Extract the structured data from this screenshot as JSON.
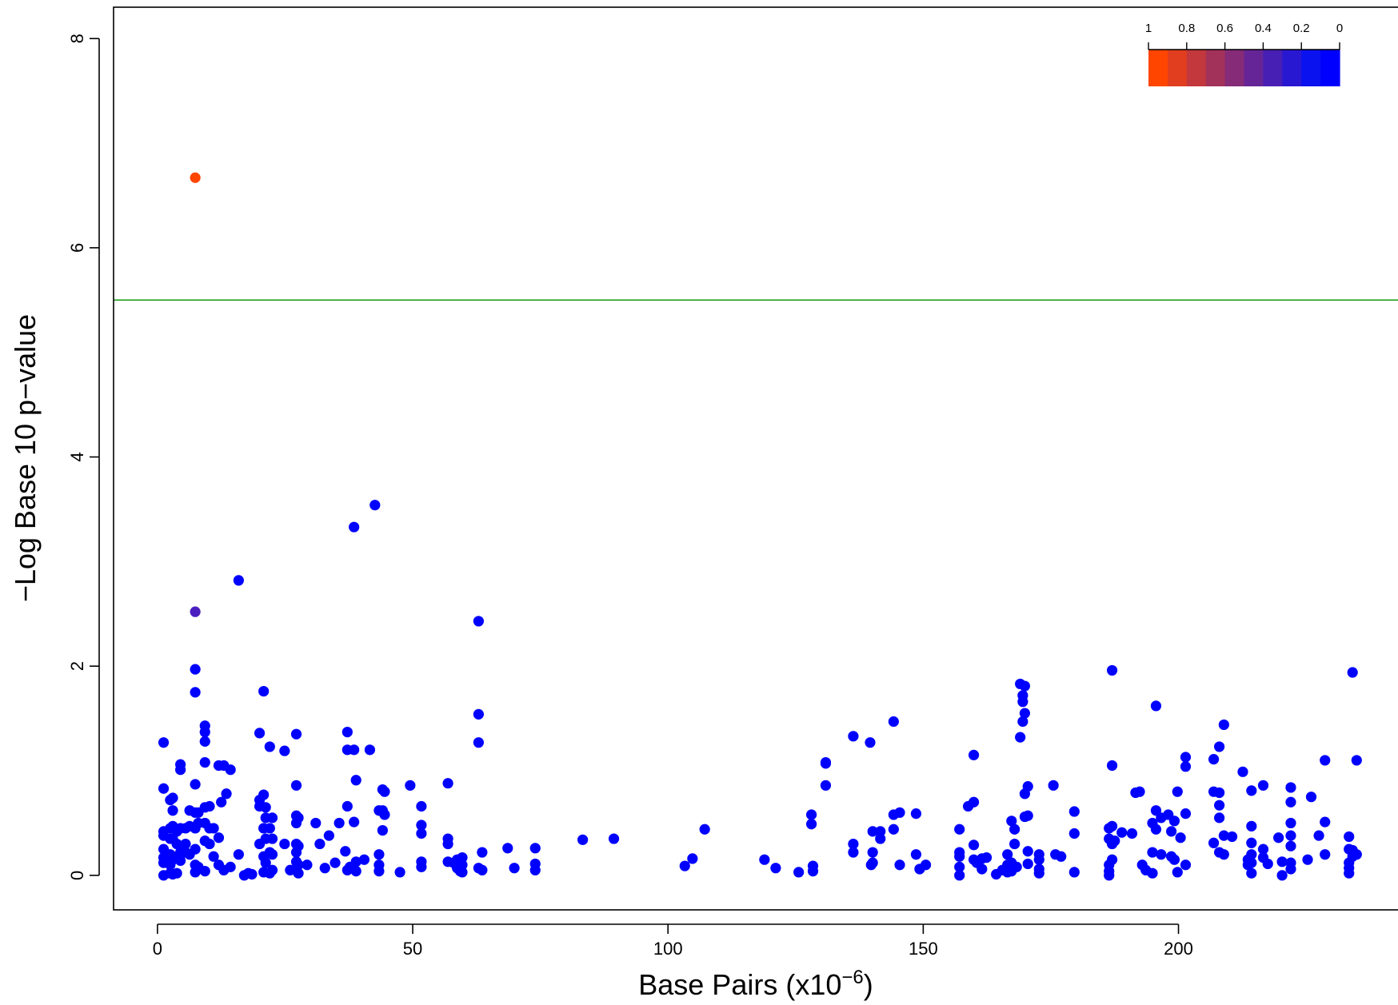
{
  "chart_data": {
    "type": "scatter",
    "xlabel": "Base Pairs (x10",
    "xlabel_sup": "−6",
    "xlabel_close": ")",
    "ylabel": "−Log Base 10 p−value",
    "xlim": [
      -8.6,
      243
    ],
    "ylim": [
      -0.33,
      8.3
    ],
    "xticks": [
      0,
      50,
      100,
      150,
      200
    ],
    "xtick_labels": [
      "0",
      "50",
      "100",
      "150",
      "200"
    ],
    "yticks": [
      0,
      2,
      4,
      6,
      8
    ],
    "ytick_labels": [
      "0",
      "2",
      "4",
      "6",
      "8"
    ],
    "threshold": {
      "y": 5.5,
      "color": "#1a9e1a"
    },
    "grid": false,
    "legend": {
      "placement": "top-right",
      "labels": [
        "1",
        "0.8",
        "0.6",
        "0.4",
        "0.2",
        "0"
      ],
      "colors": [
        "#ff4500",
        "#e03e1e",
        "#c2383c",
        "#a3325a",
        "#852b78",
        "#662596",
        "#481fb4",
        "#2918d2",
        "#0b12f0",
        "#0000ff"
      ]
    },
    "point_colors": {
      "lead": "#ff4500",
      "mid": "#4b1ebf",
      "default": "#0000ff"
    },
    "points": [
      {
        "x": 7.4,
        "y": 6.67,
        "c": "lead"
      },
      {
        "x": 7.4,
        "y": 2.52,
        "c": "mid"
      },
      {
        "x": 7.4,
        "y": 1.97
      },
      {
        "x": 7.4,
        "y": 1.75
      },
      {
        "x": 7.4,
        "y": 0.87
      },
      {
        "x": 7.4,
        "y": 0.6
      },
      {
        "x": 7.4,
        "y": 0.45
      },
      {
        "x": 7.4,
        "y": 0.25
      },
      {
        "x": 7.4,
        "y": 0.1
      },
      {
        "x": 7.4,
        "y": 0.03
      },
      {
        "x": 1.2,
        "y": 1.27
      },
      {
        "x": 1.2,
        "y": 0.83
      },
      {
        "x": 1.2,
        "y": 0.42
      },
      {
        "x": 1.2,
        "y": 0.38
      },
      {
        "x": 1.2,
        "y": 0.25
      },
      {
        "x": 1.2,
        "y": 0.17
      },
      {
        "x": 1.2,
        "y": 0.12
      },
      {
        "x": 1.2,
        "y": 0.0
      },
      {
        "x": 2.5,
        "y": 0.72
      },
      {
        "x": 2.5,
        "y": 0.45
      },
      {
        "x": 2.5,
        "y": 0.35
      },
      {
        "x": 2.5,
        "y": 0.2
      },
      {
        "x": 2.5,
        "y": 0.1
      },
      {
        "x": 2.5,
        "y": 0.02
      },
      {
        "x": 3.0,
        "y": 0.74
      },
      {
        "x": 3.0,
        "y": 0.62
      },
      {
        "x": 3.0,
        "y": 0.47
      },
      {
        "x": 3.0,
        "y": 0.35
      },
      {
        "x": 3.0,
        "y": 0.15
      },
      {
        "x": 3.0,
        "y": 0.01
      },
      {
        "x": 3.8,
        "y": 0.42
      },
      {
        "x": 3.8,
        "y": 0.3
      },
      {
        "x": 3.8,
        "y": 0.18
      },
      {
        "x": 3.8,
        "y": 0.02
      },
      {
        "x": 4.5,
        "y": 1.06
      },
      {
        "x": 4.5,
        "y": 1.01
      },
      {
        "x": 4.5,
        "y": 0.45
      },
      {
        "x": 4.5,
        "y": 0.22
      },
      {
        "x": 4.5,
        "y": 0.14
      },
      {
        "x": 5.5,
        "y": 0.45
      },
      {
        "x": 5.5,
        "y": 0.3
      },
      {
        "x": 5.5,
        "y": 0.22
      },
      {
        "x": 6.3,
        "y": 0.62
      },
      {
        "x": 6.3,
        "y": 0.47
      },
      {
        "x": 6.3,
        "y": 0.2
      },
      {
        "x": 8.0,
        "y": 0.6
      },
      {
        "x": 8.0,
        "y": 0.5
      },
      {
        "x": 8.0,
        "y": 0.08
      },
      {
        "x": 9.3,
        "y": 1.43
      },
      {
        "x": 9.3,
        "y": 1.37
      },
      {
        "x": 9.3,
        "y": 1.28
      },
      {
        "x": 9.3,
        "y": 1.08
      },
      {
        "x": 9.3,
        "y": 0.65
      },
      {
        "x": 9.3,
        "y": 0.5
      },
      {
        "x": 9.3,
        "y": 0.33
      },
      {
        "x": 9.3,
        "y": 0.04
      },
      {
        "x": 10.2,
        "y": 0.66
      },
      {
        "x": 10.2,
        "y": 0.45
      },
      {
        "x": 10.2,
        "y": 0.3
      },
      {
        "x": 11.0,
        "y": 0.45
      },
      {
        "x": 11.0,
        "y": 0.18
      },
      {
        "x": 12.0,
        "y": 1.05
      },
      {
        "x": 12.0,
        "y": 0.36
      },
      {
        "x": 12.0,
        "y": 0.1
      },
      {
        "x": 12.5,
        "y": 0.7
      },
      {
        "x": 13.0,
        "y": 1.05
      },
      {
        "x": 13.0,
        "y": 0.05
      },
      {
        "x": 13.5,
        "y": 0.78
      },
      {
        "x": 14.3,
        "y": 1.01
      },
      {
        "x": 14.3,
        "y": 0.08
      },
      {
        "x": 15.9,
        "y": 2.82
      },
      {
        "x": 15.9,
        "y": 0.2
      },
      {
        "x": 17.0,
        "y": 0.0
      },
      {
        "x": 17.8,
        "y": 0.02
      },
      {
        "x": 18.5,
        "y": 0.01
      },
      {
        "x": 20.0,
        "y": 1.36
      },
      {
        "x": 20.0,
        "y": 0.72
      },
      {
        "x": 20.0,
        "y": 0.66
      },
      {
        "x": 20.0,
        "y": 0.3
      },
      {
        "x": 20.8,
        "y": 1.76
      },
      {
        "x": 20.8,
        "y": 0.77
      },
      {
        "x": 20.8,
        "y": 0.45
      },
      {
        "x": 20.8,
        "y": 0.18
      },
      {
        "x": 20.8,
        "y": 0.03
      },
      {
        "x": 21.2,
        "y": 0.65
      },
      {
        "x": 21.2,
        "y": 0.55
      },
      {
        "x": 21.2,
        "y": 0.35
      },
      {
        "x": 21.2,
        "y": 0.12
      },
      {
        "x": 22.0,
        "y": 1.23
      },
      {
        "x": 22.0,
        "y": 0.45
      },
      {
        "x": 22.0,
        "y": 0.22
      },
      {
        "x": 22.0,
        "y": 0.02
      },
      {
        "x": 22.5,
        "y": 0.55
      },
      {
        "x": 22.5,
        "y": 0.35
      },
      {
        "x": 22.5,
        "y": 0.2
      },
      {
        "x": 22.5,
        "y": 0.05
      },
      {
        "x": 24.9,
        "y": 1.19
      },
      {
        "x": 24.9,
        "y": 0.3
      },
      {
        "x": 26.0,
        "y": 0.05
      },
      {
        "x": 27.2,
        "y": 1.35
      },
      {
        "x": 27.2,
        "y": 0.86
      },
      {
        "x": 27.2,
        "y": 0.57
      },
      {
        "x": 27.2,
        "y": 0.5
      },
      {
        "x": 27.2,
        "y": 0.3
      },
      {
        "x": 27.2,
        "y": 0.22
      },
      {
        "x": 27.2,
        "y": 0.13
      },
      {
        "x": 27.2,
        "y": 0.05
      },
      {
        "x": 27.6,
        "y": 0.55
      },
      {
        "x": 27.6,
        "y": 0.28
      },
      {
        "x": 27.6,
        "y": 0.1
      },
      {
        "x": 27.6,
        "y": 0.02
      },
      {
        "x": 29.3,
        "y": 0.1
      },
      {
        "x": 31.0,
        "y": 0.5
      },
      {
        "x": 31.8,
        "y": 0.3
      },
      {
        "x": 32.8,
        "y": 0.07
      },
      {
        "x": 33.6,
        "y": 0.38
      },
      {
        "x": 34.8,
        "y": 0.12
      },
      {
        "x": 35.6,
        "y": 0.5
      },
      {
        "x": 36.8,
        "y": 0.23
      },
      {
        "x": 37.2,
        "y": 1.37
      },
      {
        "x": 37.2,
        "y": 1.2
      },
      {
        "x": 37.2,
        "y": 0.66
      },
      {
        "x": 37.2,
        "y": 0.05
      },
      {
        "x": 37.7,
        "y": 0.08
      },
      {
        "x": 38.5,
        "y": 3.33
      },
      {
        "x": 38.5,
        "y": 1.2
      },
      {
        "x": 38.5,
        "y": 0.51
      },
      {
        "x": 38.9,
        "y": 0.91
      },
      {
        "x": 38.9,
        "y": 0.13
      },
      {
        "x": 38.9,
        "y": 0.04
      },
      {
        "x": 40.5,
        "y": 0.15
      },
      {
        "x": 41.6,
        "y": 1.2
      },
      {
        "x": 42.6,
        "y": 3.54
      },
      {
        "x": 43.4,
        "y": 0.62
      },
      {
        "x": 43.4,
        "y": 0.2
      },
      {
        "x": 43.4,
        "y": 0.1
      },
      {
        "x": 43.4,
        "y": 0.04
      },
      {
        "x": 44.1,
        "y": 0.82
      },
      {
        "x": 44.1,
        "y": 0.62
      },
      {
        "x": 44.1,
        "y": 0.43
      },
      {
        "x": 44.5,
        "y": 0.8
      },
      {
        "x": 44.5,
        "y": 0.58
      },
      {
        "x": 47.5,
        "y": 0.03
      },
      {
        "x": 49.5,
        "y": 0.86
      },
      {
        "x": 51.7,
        "y": 0.66
      },
      {
        "x": 51.7,
        "y": 0.48
      },
      {
        "x": 51.7,
        "y": 0.4
      },
      {
        "x": 51.7,
        "y": 0.13
      },
      {
        "x": 51.7,
        "y": 0.08
      },
      {
        "x": 56.9,
        "y": 0.88
      },
      {
        "x": 56.9,
        "y": 0.35
      },
      {
        "x": 56.9,
        "y": 0.3
      },
      {
        "x": 56.9,
        "y": 0.13
      },
      {
        "x": 58.0,
        "y": 0.12
      },
      {
        "x": 58.7,
        "y": 0.15
      },
      {
        "x": 58.7,
        "y": 0.07
      },
      {
        "x": 59.3,
        "y": 0.04
      },
      {
        "x": 59.7,
        "y": 0.17
      },
      {
        "x": 59.7,
        "y": 0.1
      },
      {
        "x": 59.7,
        "y": 0.03
      },
      {
        "x": 62.9,
        "y": 2.43
      },
      {
        "x": 62.9,
        "y": 1.54
      },
      {
        "x": 62.9,
        "y": 1.27
      },
      {
        "x": 62.9,
        "y": 0.07
      },
      {
        "x": 63.6,
        "y": 0.22
      },
      {
        "x": 63.6,
        "y": 0.05
      },
      {
        "x": 68.6,
        "y": 0.26
      },
      {
        "x": 69.9,
        "y": 0.07
      },
      {
        "x": 74.0,
        "y": 0.26
      },
      {
        "x": 74.0,
        "y": 0.11
      },
      {
        "x": 74.0,
        "y": 0.05
      },
      {
        "x": 83.3,
        "y": 0.34
      },
      {
        "x": 89.4,
        "y": 0.35
      },
      {
        "x": 103.3,
        "y": 0.09
      },
      {
        "x": 104.8,
        "y": 0.16
      },
      {
        "x": 107.2,
        "y": 0.44
      },
      {
        "x": 118.9,
        "y": 0.15
      },
      {
        "x": 121.1,
        "y": 0.07
      },
      {
        "x": 125.6,
        "y": 0.03
      },
      {
        "x": 128.1,
        "y": 0.58
      },
      {
        "x": 128.1,
        "y": 0.49
      },
      {
        "x": 128.4,
        "y": 0.09
      },
      {
        "x": 128.4,
        "y": 0.04
      },
      {
        "x": 130.9,
        "y": 1.08
      },
      {
        "x": 130.9,
        "y": 1.07
      },
      {
        "x": 130.9,
        "y": 0.86
      },
      {
        "x": 136.3,
        "y": 1.33
      },
      {
        "x": 136.3,
        "y": 0.3
      },
      {
        "x": 136.3,
        "y": 0.22
      },
      {
        "x": 139.6,
        "y": 1.27
      },
      {
        "x": 139.8,
        "y": 0.1
      },
      {
        "x": 140.1,
        "y": 0.42
      },
      {
        "x": 140.1,
        "y": 0.22
      },
      {
        "x": 140.1,
        "y": 0.12
      },
      {
        "x": 141.6,
        "y": 0.42
      },
      {
        "x": 141.6,
        "y": 0.35
      },
      {
        "x": 144.2,
        "y": 1.47
      },
      {
        "x": 144.2,
        "y": 0.58
      },
      {
        "x": 144.2,
        "y": 0.44
      },
      {
        "x": 145.4,
        "y": 0.6
      },
      {
        "x": 145.4,
        "y": 0.1
      },
      {
        "x": 148.6,
        "y": 0.59
      },
      {
        "x": 148.6,
        "y": 0.2
      },
      {
        "x": 149.3,
        "y": 0.06
      },
      {
        "x": 150.5,
        "y": 0.1
      },
      {
        "x": 157.1,
        "y": 0.44
      },
      {
        "x": 157.1,
        "y": 0.22
      },
      {
        "x": 157.1,
        "y": 0.18
      },
      {
        "x": 157.1,
        "y": 0.08
      },
      {
        "x": 157.1,
        "y": 0.0
      },
      {
        "x": 158.8,
        "y": 0.66
      },
      {
        "x": 159.9,
        "y": 1.15
      },
      {
        "x": 159.9,
        "y": 0.7
      },
      {
        "x": 159.9,
        "y": 0.29
      },
      {
        "x": 159.9,
        "y": 0.15
      },
      {
        "x": 160.5,
        "y": 0.12
      },
      {
        "x": 161.5,
        "y": 0.16
      },
      {
        "x": 161.5,
        "y": 0.06
      },
      {
        "x": 162.4,
        "y": 0.17
      },
      {
        "x": 164.3,
        "y": 0.01
      },
      {
        "x": 165.5,
        "y": 0.05
      },
      {
        "x": 166.5,
        "y": 0.2
      },
      {
        "x": 166.5,
        "y": 0.1
      },
      {
        "x": 166.5,
        "y": 0.03
      },
      {
        "x": 167.3,
        "y": 0.52
      },
      {
        "x": 167.3,
        "y": 0.12
      },
      {
        "x": 167.3,
        "y": 0.04
      },
      {
        "x": 167.9,
        "y": 0.44
      },
      {
        "x": 167.9,
        "y": 0.3
      },
      {
        "x": 168.3,
        "y": 0.08
      },
      {
        "x": 169.0,
        "y": 1.83
      },
      {
        "x": 169.0,
        "y": 1.32
      },
      {
        "x": 169.5,
        "y": 1.72
      },
      {
        "x": 169.5,
        "y": 1.66
      },
      {
        "x": 169.5,
        "y": 1.47
      },
      {
        "x": 169.9,
        "y": 1.81
      },
      {
        "x": 169.9,
        "y": 1.55
      },
      {
        "x": 169.9,
        "y": 0.78
      },
      {
        "x": 169.9,
        "y": 0.56
      },
      {
        "x": 170.5,
        "y": 0.85
      },
      {
        "x": 170.5,
        "y": 0.57
      },
      {
        "x": 170.5,
        "y": 0.23
      },
      {
        "x": 170.5,
        "y": 0.11
      },
      {
        "x": 172.7,
        "y": 0.2
      },
      {
        "x": 172.7,
        "y": 0.15
      },
      {
        "x": 172.7,
        "y": 0.06
      },
      {
        "x": 172.7,
        "y": 0.02
      },
      {
        "x": 175.5,
        "y": 0.86
      },
      {
        "x": 175.9,
        "y": 0.2
      },
      {
        "x": 177.0,
        "y": 0.18
      },
      {
        "x": 179.6,
        "y": 0.61
      },
      {
        "x": 179.6,
        "y": 0.4
      },
      {
        "x": 179.6,
        "y": 0.03
      },
      {
        "x": 186.4,
        "y": 0.45
      },
      {
        "x": 186.4,
        "y": 0.35
      },
      {
        "x": 186.4,
        "y": 0.1
      },
      {
        "x": 186.4,
        "y": 0.04
      },
      {
        "x": 186.4,
        "y": 0.0
      },
      {
        "x": 187.0,
        "y": 1.96
      },
      {
        "x": 187.0,
        "y": 1.05
      },
      {
        "x": 187.0,
        "y": 0.47
      },
      {
        "x": 187.0,
        "y": 0.3
      },
      {
        "x": 187.0,
        "y": 0.15
      },
      {
        "x": 187.5,
        "y": 0.33
      },
      {
        "x": 188.9,
        "y": 0.41
      },
      {
        "x": 190.9,
        "y": 0.4
      },
      {
        "x": 191.6,
        "y": 0.79
      },
      {
        "x": 192.4,
        "y": 0.8
      },
      {
        "x": 192.9,
        "y": 0.1
      },
      {
        "x": 193.6,
        "y": 0.05
      },
      {
        "x": 194.9,
        "y": 0.5
      },
      {
        "x": 194.9,
        "y": 0.22
      },
      {
        "x": 194.9,
        "y": 0.02
      },
      {
        "x": 195.6,
        "y": 1.62
      },
      {
        "x": 195.6,
        "y": 0.62
      },
      {
        "x": 195.6,
        "y": 0.44
      },
      {
        "x": 196.6,
        "y": 0.55
      },
      {
        "x": 196.6,
        "y": 0.2
      },
      {
        "x": 198.0,
        "y": 0.58
      },
      {
        "x": 198.6,
        "y": 0.42
      },
      {
        "x": 198.6,
        "y": 0.18
      },
      {
        "x": 199.2,
        "y": 0.52
      },
      {
        "x": 199.2,
        "y": 0.15
      },
      {
        "x": 199.8,
        "y": 0.8
      },
      {
        "x": 199.8,
        "y": 0.03
      },
      {
        "x": 200.4,
        "y": 0.36
      },
      {
        "x": 201.4,
        "y": 1.13
      },
      {
        "x": 201.4,
        "y": 1.04
      },
      {
        "x": 201.4,
        "y": 0.59
      },
      {
        "x": 201.4,
        "y": 0.1
      },
      {
        "x": 206.9,
        "y": 1.11
      },
      {
        "x": 206.9,
        "y": 0.8
      },
      {
        "x": 206.9,
        "y": 0.31
      },
      {
        "x": 208.0,
        "y": 1.23
      },
      {
        "x": 208.0,
        "y": 0.79
      },
      {
        "x": 208.0,
        "y": 0.67
      },
      {
        "x": 208.0,
        "y": 0.55
      },
      {
        "x": 208.0,
        "y": 0.22
      },
      {
        "x": 208.9,
        "y": 1.44
      },
      {
        "x": 208.9,
        "y": 0.38
      },
      {
        "x": 208.9,
        "y": 0.2
      },
      {
        "x": 210.5,
        "y": 0.37
      },
      {
        "x": 212.6,
        "y": 0.99
      },
      {
        "x": 213.6,
        "y": 0.15
      },
      {
        "x": 213.6,
        "y": 0.1
      },
      {
        "x": 214.3,
        "y": 0.81
      },
      {
        "x": 214.3,
        "y": 0.47
      },
      {
        "x": 214.3,
        "y": 0.31
      },
      {
        "x": 214.3,
        "y": 0.2
      },
      {
        "x": 214.3,
        "y": 0.12
      },
      {
        "x": 214.3,
        "y": 0.02
      },
      {
        "x": 216.6,
        "y": 0.86
      },
      {
        "x": 216.6,
        "y": 0.25
      },
      {
        "x": 216.6,
        "y": 0.17
      },
      {
        "x": 217.5,
        "y": 0.11
      },
      {
        "x": 219.6,
        "y": 0.36
      },
      {
        "x": 220.3,
        "y": 0.13
      },
      {
        "x": 220.3,
        "y": 0.0
      },
      {
        "x": 222.0,
        "y": 0.84
      },
      {
        "x": 222.0,
        "y": 0.7
      },
      {
        "x": 222.0,
        "y": 0.5
      },
      {
        "x": 222.0,
        "y": 0.38
      },
      {
        "x": 222.0,
        "y": 0.28
      },
      {
        "x": 222.0,
        "y": 0.12
      },
      {
        "x": 222.0,
        "y": 0.06
      },
      {
        "x": 225.3,
        "y": 0.15
      },
      {
        "x": 226.0,
        "y": 0.75
      },
      {
        "x": 227.5,
        "y": 0.38
      },
      {
        "x": 228.7,
        "y": 1.1
      },
      {
        "x": 228.7,
        "y": 0.51
      },
      {
        "x": 228.7,
        "y": 0.2
      },
      {
        "x": 233.4,
        "y": 0.37
      },
      {
        "x": 233.4,
        "y": 0.25
      },
      {
        "x": 233.4,
        "y": 0.12
      },
      {
        "x": 233.4,
        "y": 0.07
      },
      {
        "x": 233.4,
        "y": 0.02
      },
      {
        "x": 234.1,
        "y": 1.94
      },
      {
        "x": 234.1,
        "y": 0.24
      },
      {
        "x": 234.1,
        "y": 0.18
      },
      {
        "x": 234.9,
        "y": 1.1
      },
      {
        "x": 234.9,
        "y": 0.2
      }
    ]
  }
}
